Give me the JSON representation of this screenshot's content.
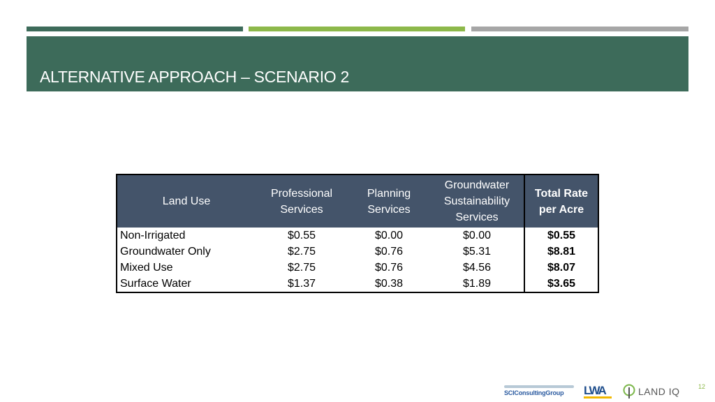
{
  "slide": {
    "title": "ALTERNATIVE APPROACH – SCENARIO 2",
    "page_number": "12"
  },
  "table": {
    "headers": {
      "land_use": "Land Use",
      "professional": [
        "Professional",
        "Services"
      ],
      "planning": [
        "Planning",
        "Services"
      ],
      "groundwater": [
        "Groundwater",
        "Sustainability",
        "Services"
      ],
      "total": [
        "Total Rate",
        "per Acre"
      ]
    },
    "rows": [
      {
        "land_use": "Non-Irrigated",
        "professional": "$0.55",
        "planning": "$0.00",
        "groundwater": "$0.00",
        "total": "$0.55"
      },
      {
        "land_use": "Groundwater Only",
        "professional": "$2.75",
        "planning": "$0.76",
        "groundwater": "$5.31",
        "total": "$8.81"
      },
      {
        "land_use": "Mixed Use",
        "professional": "$2.75",
        "planning": "$0.76",
        "groundwater": "$4.56",
        "total": "$8.07"
      },
      {
        "land_use": "Surface Water",
        "professional": "$1.37",
        "planning": "$0.38",
        "groundwater": "$1.89",
        "total": "$3.65"
      }
    ]
  },
  "logos": {
    "sci": "SCIConsultingGroup",
    "lwa": "LWA",
    "landiq": "LAND IQ"
  },
  "colors": {
    "title_bar": "#3d6b5a",
    "stripe_green": "#8db84a",
    "stripe_gray": "#a6a6a6",
    "table_header": "#44546a"
  }
}
